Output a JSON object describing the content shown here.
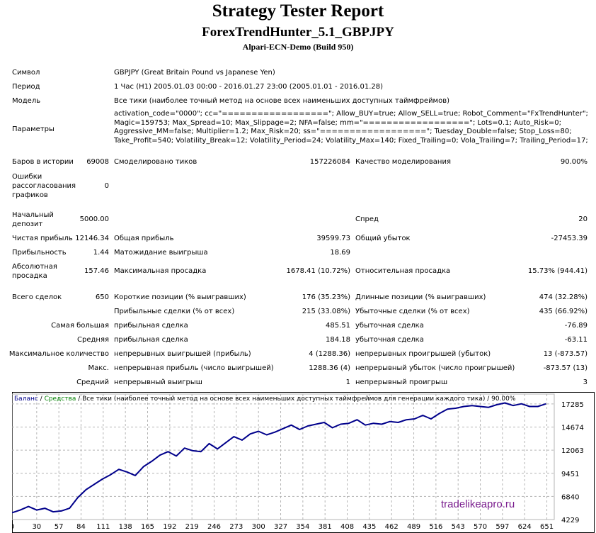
{
  "header": {
    "title": "Strategy Tester Report",
    "expert": "ForexTrendHunter_5.1_GBPJPY",
    "server": "Alpari-ECN-Demo (Build 950)"
  },
  "info": {
    "symbol_label": "Символ",
    "symbol_value": "GBPJPY (Great Britain Pound vs Japanese Yen)",
    "period_label": "Период",
    "period_value": "1 Час (H1) 2005.01.03 00:00 - 2016.01.27 23:00 (2005.01.01 - 2016.01.28)",
    "model_label": "Модель",
    "model_value": "Все тики (наиболее точный метод на основе всех наименьших доступных таймфреймов)",
    "params_label": "Параметры",
    "params_value": "activation_code=\"0000\"; cc=\"==================\"; Allow_BUY=true; Allow_SELL=true; Robot_Comment=\"FxTrendHunter\"; Magic=159753; Max_Spread=10; Max_Slippage=2; NFA=false; mm=\"==================\"; Lots=0.1; Auto_Risk=0; Aggressive_MM=false; Multiplier=1.2; Max_Risk=20; ss=\"==================\"; Tuesday_Double=false; Stop_Loss=80; Take_Profit=540; Volatility_Break=12; Volatility_Period=24; Volatility_Max=140; Fixed_Trailing=0; Vola_Trailing=7; Trailing_Period=17;"
  },
  "stats": {
    "bars_label": "Баров в истории",
    "bars_value": "69008",
    "ticks_label": "Смоделировано тиков",
    "ticks_value": "157226084",
    "quality_label": "Качество моделирования",
    "quality_value": "90.00%",
    "errors_label_1": "Ошибки",
    "errors_label_2": "рассогласования",
    "errors_label_3": "графиков",
    "errors_value": "0",
    "deposit_label_1": "Начальный",
    "deposit_label_2": "депозит",
    "deposit_value": "5000.00",
    "spread_label": "Спред",
    "spread_value": "20",
    "net_label": "Чистая прибыль",
    "net_value": "12146.34",
    "gross_profit_label": "Общая прибыль",
    "gross_profit_value": "39599.73",
    "gross_loss_label": "Общий убыток",
    "gross_loss_value": "-27453.39",
    "pf_label": "Прибыльность",
    "pf_value": "1.44",
    "expected_label": "Матожидание выигрыша",
    "expected_value": "18.69",
    "abs_dd_label_1": "Абсолютная",
    "abs_dd_label_2": "просадка",
    "abs_dd_value": "157.46",
    "max_dd_label": "Максимальная просадка",
    "max_dd_value": "1678.41 (10.72%)",
    "rel_dd_label": "Относительная просадка",
    "rel_dd_value": "15.73% (944.41)",
    "trades_label": "Всего сделок",
    "trades_value": "650",
    "short_label": "Короткие позиции (% выигравших)",
    "short_value": "176 (35.23%)",
    "long_label": "Длинные позиции (% выигравших)",
    "long_value": "474 (32.28%)",
    "profit_trades_label": "Прибыльные сделки (% от всех)",
    "profit_trades_value": "215 (33.08%)",
    "loss_trades_label": "Убыточные сделки (% от всех)",
    "loss_trades_value": "435 (66.92%)",
    "largest_label": "Самая большая",
    "largest_profit_label": "прибыльная сделка",
    "largest_profit_value": "485.51",
    "largest_loss_label": "убыточная сделка",
    "largest_loss_value": "-76.89",
    "average_label": "Средняя",
    "average_profit_label": "прибыльная сделка",
    "average_profit_value": "184.18",
    "average_loss_label": "убыточная сделка",
    "average_loss_value": "-63.11",
    "max_count_label": "Максимальное количество",
    "cons_wins_label": "непрерывных выигрышей (прибыль)",
    "cons_wins_value": "4 (1288.36)",
    "cons_losses_label": "непрерывных проигрышей (убыток)",
    "cons_losses_value": "13 (-873.57)",
    "max_label": "Макс.",
    "cons_profit_label": "непрерывная прибыль (число выигрышей)",
    "cons_profit_value": "1288.36 (4)",
    "cons_loss_label": "непрерывный убыток (число проигрышей)",
    "cons_loss_value": "-873.57 (13)",
    "avg_label": "Средний",
    "avg_wins_label": "непрерывный выигрыш",
    "avg_wins_value": "1",
    "avg_losses_label": "непрерывный проигрыш",
    "avg_losses_value": "3"
  },
  "watermark": "tradelikeapro.ru",
  "chart_data": {
    "type": "line",
    "legend": {
      "balance": "Баланс",
      "sep1": " / ",
      "equity": "Средства",
      "rest": " / Все тики (наиболее точный метод на основе всех наименьших доступных таймфреймов для генерации каждого тика) / 90.00%"
    },
    "colors": {
      "line": "#00008b",
      "balance": "#00008b",
      "equity": "#008000",
      "grid": "#b4b4b4",
      "frame": "#000000"
    },
    "ylim": [
      4229,
      18400
    ],
    "xlim": [
      0,
      660
    ],
    "y_ticks": [
      4229,
      6840,
      9451,
      12063,
      14674,
      17285
    ],
    "x_ticks": [
      0,
      30,
      57,
      84,
      111,
      138,
      165,
      192,
      219,
      246,
      273,
      300,
      327,
      354,
      381,
      408,
      435,
      462,
      489,
      516,
      543,
      570,
      597,
      624,
      651
    ],
    "grid": true,
    "series": [
      {
        "x": [
          0,
          10,
          20,
          30,
          40,
          50,
          60,
          70,
          80,
          90,
          100,
          110,
          120,
          130,
          140,
          150,
          160,
          170,
          180,
          190,
          200,
          210,
          220,
          230,
          240,
          250,
          260,
          270,
          280,
          290,
          300,
          310,
          320,
          330,
          340,
          350,
          360,
          370,
          380,
          390,
          400,
          410,
          420,
          430,
          440,
          450,
          460,
          470,
          480,
          490,
          500,
          510,
          520,
          530,
          540,
          550,
          560,
          570,
          580,
          590,
          600,
          610,
          620,
          630,
          640,
          650
        ],
        "y": [
          5000,
          5300,
          5700,
          5300,
          5500,
          5100,
          5200,
          5500,
          6700,
          7600,
          8200,
          8800,
          9300,
          9900,
          9600,
          9200,
          10200,
          10800,
          11500,
          11900,
          11400,
          12300,
          12000,
          11900,
          12800,
          12200,
          12900,
          13600,
          13200,
          13900,
          14200,
          13800,
          14100,
          14500,
          14900,
          14400,
          14800,
          15000,
          15200,
          14600,
          15000,
          15100,
          15500,
          14900,
          15100,
          15000,
          15300,
          15200,
          15500,
          15600,
          16000,
          15600,
          16200,
          16700,
          16800,
          17000,
          17100,
          17000,
          16900,
          17200,
          17400,
          17100,
          17300,
          17000,
          17000,
          17300
        ]
      }
    ]
  }
}
